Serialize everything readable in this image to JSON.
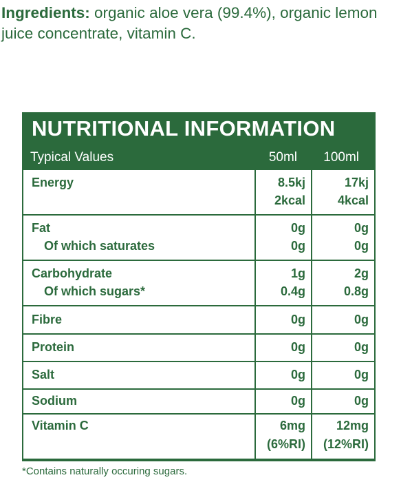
{
  "ingredients": {
    "label": "Ingredients:",
    "text": " organic aloe vera (99.4%), organic lemon juice concentrate, vitamin C."
  },
  "table": {
    "title": "NUTRITIONAL INFORMATION",
    "header": {
      "label": "Typical Values",
      "col1": "50ml",
      "col2": "100ml"
    },
    "energy": {
      "label": "Energy",
      "v50a": "8.5kj",
      "v50b": "2kcal",
      "v100a": "17kj",
      "v100b": "4kcal"
    },
    "fat": {
      "label": "Fat",
      "sub": "Of which saturates",
      "v50a": "0g",
      "v50b": "0g",
      "v100a": "0g",
      "v100b": "0g"
    },
    "carb": {
      "label": "Carbohydrate",
      "sub": "Of which sugars*",
      "v50a": "1g",
      "v50b": "0.4g",
      "v100a": "2g",
      "v100b": "0.8g"
    },
    "fibre": {
      "label": "Fibre",
      "v50": "0g",
      "v100": "0g"
    },
    "protein": {
      "label": "Protein",
      "v50": "0g",
      "v100": "0g"
    },
    "salt": {
      "label": "Salt",
      "v50": "0g",
      "v100": "0g"
    },
    "sodium": {
      "label": "Sodium",
      "v50": "0g",
      "v100": "0g"
    },
    "vitc": {
      "label": "Vitamin C",
      "v50a": "6mg",
      "v50b": "(6%RI)",
      "v100a": "12mg",
      "v100b": "(12%RI)"
    }
  },
  "footnote": "*Contains naturally occuring sugars."
}
